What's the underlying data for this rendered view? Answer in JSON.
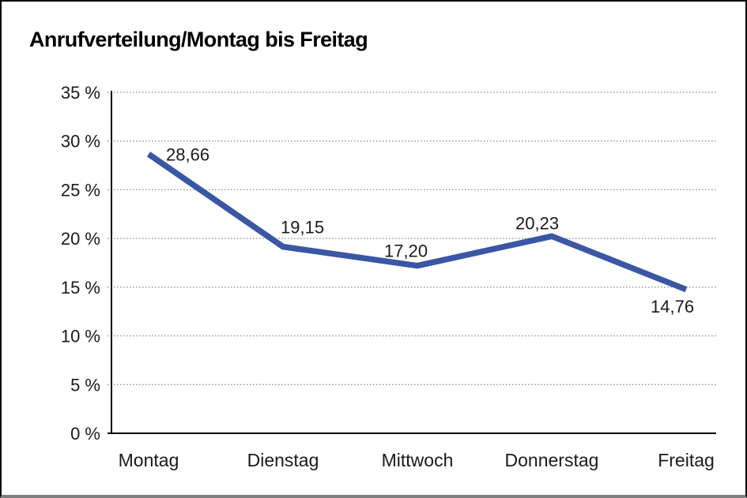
{
  "window": {
    "background": "#ffffff",
    "border_color": "#000000",
    "bottom_border_color": "#7f7f7f"
  },
  "chart_data": {
    "type": "line",
    "title": "Anrufverteilung/Montag bis Freitag",
    "categories": [
      "Montag",
      "Dienstag",
      "Mittwoch",
      "Donnerstag",
      "Freitag"
    ],
    "series": [
      {
        "name": "Anrufverteilung",
        "values": [
          28.66,
          19.15,
          17.2,
          20.23,
          14.76
        ]
      }
    ],
    "point_labels": [
      "28,66",
      "19,15",
      "17,20",
      "20,23",
      "14,76"
    ],
    "y_ticks": [
      {
        "value": 35,
        "label": "35 %"
      },
      {
        "value": 30,
        "label": "30 %"
      },
      {
        "value": 25,
        "label": "25 %"
      },
      {
        "value": 20,
        "label": "20 %"
      },
      {
        "value": 15,
        "label": "15 %"
      },
      {
        "value": 10,
        "label": "10 %"
      },
      {
        "value": 5,
        "label": "5 %"
      },
      {
        "value": 0,
        "label": "0 %"
      }
    ],
    "ylim": [
      0,
      35
    ],
    "xlabel": "",
    "ylabel": "",
    "grid": "horizontal-dotted",
    "legend": "none",
    "line_color": "#3A56A4",
    "grid_color": "#8c8c8c",
    "axis_color": "#000000",
    "text_color": "#1a1a1a"
  }
}
